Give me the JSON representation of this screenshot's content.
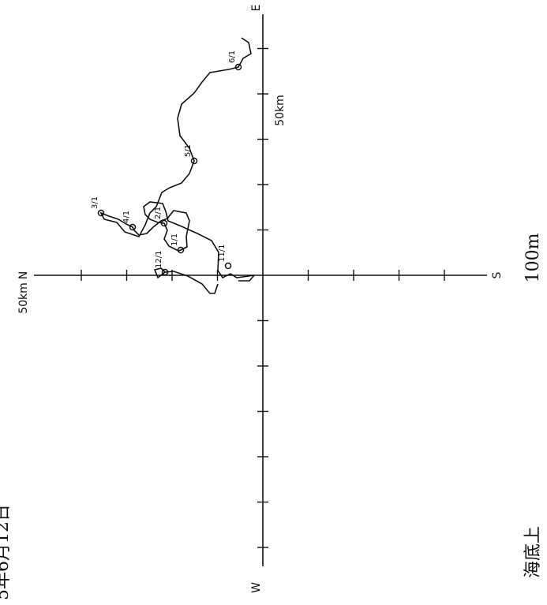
{
  "header": {
    "date": "5年6月12日"
  },
  "axes": {
    "north": "N",
    "south": "S",
    "east": "E",
    "west": "W",
    "scale_vertical": "50km",
    "scale_horizontal": "50km"
  },
  "footer": {
    "depth_label": "海底上",
    "depth_value": "100m"
  },
  "track": {
    "dates": [
      "11/1",
      "12/1",
      "1/1",
      "2/1",
      "3/1",
      "4/1",
      "5/1",
      "6/1"
    ]
  }
}
